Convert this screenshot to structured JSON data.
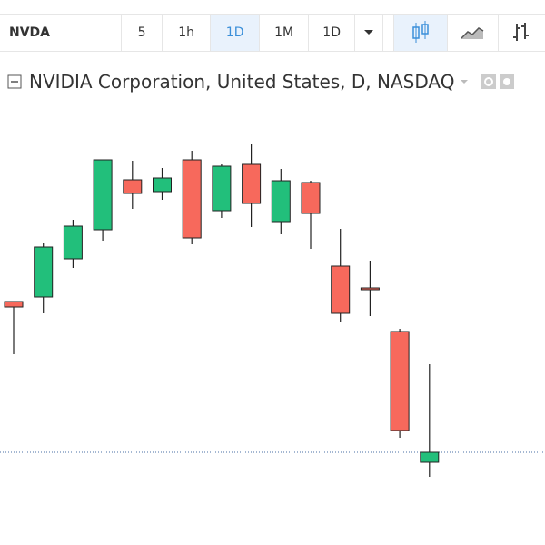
{
  "toolbar": {
    "symbol": "NVDA",
    "intervals": [
      "5",
      "1h",
      "1D",
      "1M",
      "1D"
    ],
    "active": 2
  },
  "chart_data": {
    "type": "candlestick",
    "title": "NVIDIA Corporation, United States, D, NASDAQ",
    "up_color": "#22bf7b",
    "down_color": "#f7695c",
    "ylim": [
      0,
      500
    ],
    "open": [
      268,
      273,
      315,
      347,
      402,
      389,
      424,
      368,
      419,
      356,
      399,
      307,
      283,
      235,
      91
    ],
    "high": [
      268,
      333,
      358,
      424,
      423,
      415,
      434,
      419,
      442,
      414,
      401,
      348,
      313,
      238,
      199
    ],
    "low": [
      210,
      255,
      305,
      335,
      370,
      380,
      331,
      360,
      350,
      342,
      326,
      246,
      252,
      118,
      75
    ],
    "close": [
      262,
      328,
      351,
      424,
      387,
      404,
      338,
      417,
      376,
      401,
      365,
      255,
      281,
      126,
      102
    ]
  }
}
